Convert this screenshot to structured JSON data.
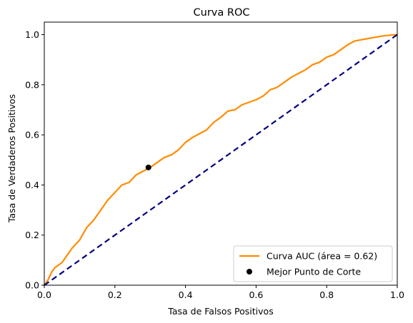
{
  "chart_data": {
    "type": "line",
    "title": "Curva ROC",
    "xlabel": "Tasa de Falsos Positivos",
    "ylabel": "Tasa de Verdaderos Positivos",
    "xlim": [
      0.0,
      1.0
    ],
    "ylim": [
      0.0,
      1.05
    ],
    "xticks": [
      "0.0",
      "0.2",
      "0.4",
      "0.6",
      "0.8",
      "1.0"
    ],
    "yticks": [
      "0.0",
      "0.2",
      "0.4",
      "0.6",
      "0.8",
      "1.0"
    ],
    "grid": false,
    "legend_position": "lower-right",
    "series": [
      {
        "name": "Curva AUC (área = 0.62)",
        "kind": "line",
        "color": "#ff8c00",
        "x": [
          0.0,
          0.01,
          0.02,
          0.03,
          0.05,
          0.07,
          0.08,
          0.1,
          0.12,
          0.14,
          0.16,
          0.18,
          0.2,
          0.22,
          0.24,
          0.26,
          0.28,
          0.3,
          0.32,
          0.34,
          0.36,
          0.38,
          0.4,
          0.42,
          0.44,
          0.46,
          0.48,
          0.5,
          0.52,
          0.54,
          0.56,
          0.58,
          0.6,
          0.62,
          0.64,
          0.66,
          0.68,
          0.7,
          0.72,
          0.74,
          0.76,
          0.78,
          0.8,
          0.82,
          0.84,
          0.86,
          0.88,
          0.9,
          0.92,
          0.94,
          0.96,
          0.98,
          1.0
        ],
        "y": [
          0.0,
          0.02,
          0.05,
          0.07,
          0.09,
          0.13,
          0.15,
          0.18,
          0.23,
          0.26,
          0.3,
          0.34,
          0.37,
          0.4,
          0.41,
          0.44,
          0.455,
          0.47,
          0.49,
          0.51,
          0.52,
          0.54,
          0.57,
          0.59,
          0.605,
          0.62,
          0.65,
          0.67,
          0.695,
          0.7,
          0.72,
          0.73,
          0.74,
          0.755,
          0.78,
          0.79,
          0.81,
          0.83,
          0.845,
          0.86,
          0.88,
          0.89,
          0.91,
          0.92,
          0.94,
          0.96,
          0.975,
          0.98,
          0.985,
          0.99,
          0.995,
          0.998,
          1.0
        ]
      },
      {
        "kind": "reference",
        "color": "#000080",
        "x": [
          0.0,
          1.0
        ],
        "y": [
          0.0,
          1.0
        ]
      },
      {
        "name": "Mejor Punto de Corte",
        "kind": "scatter",
        "color": "#000000",
        "x": [
          0.295
        ],
        "y": [
          0.47
        ]
      }
    ]
  }
}
